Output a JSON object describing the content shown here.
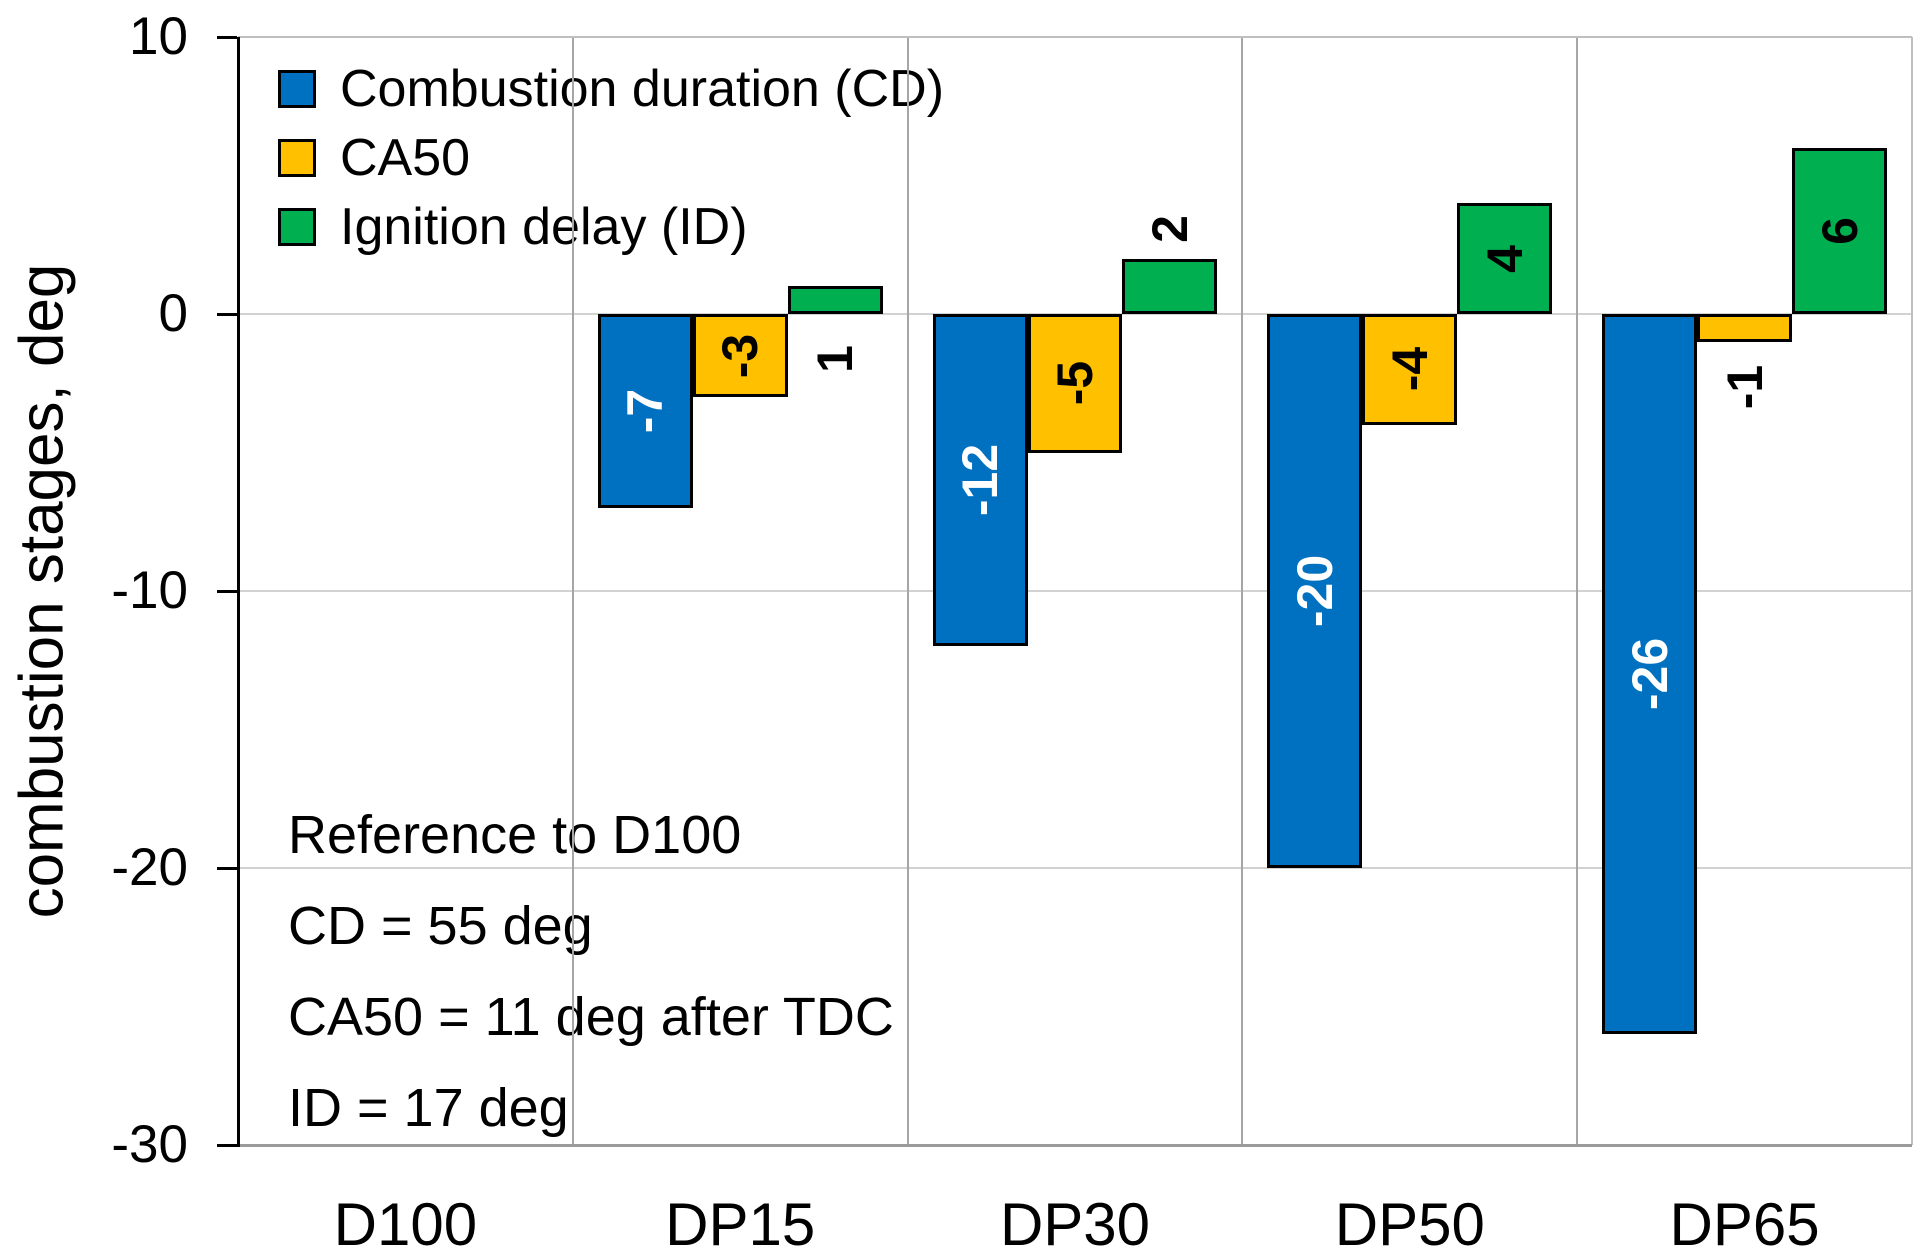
{
  "chart_data": {
    "type": "bar",
    "title": "",
    "categories": [
      "D100",
      "DP15",
      "DP30",
      "DP50",
      "DP65"
    ],
    "series": [
      {
        "name": "Combustion duration (CD)",
        "color": "#0070C0",
        "label_color": "#FFFFFF",
        "values": [
          null,
          -7,
          -12,
          -20,
          -26
        ],
        "label_pos": [
          null,
          "center",
          "center",
          "center",
          "center"
        ]
      },
      {
        "name": "CA50",
        "color": "#FFC000",
        "label_color": "#000000",
        "values": [
          null,
          -3,
          -5,
          -4,
          -1
        ],
        "label_pos": [
          null,
          "center",
          "center",
          "center",
          "below"
        ]
      },
      {
        "name": "Ignition delay (ID)",
        "color": "#00B050",
        "label_color": "#000000",
        "values": [
          null,
          1,
          2,
          4,
          6
        ],
        "label_pos": [
          null,
          "below",
          "above",
          "center",
          "center"
        ]
      }
    ],
    "xlabel": "",
    "ylabel": "combustion stages, deg",
    "ylim": [
      -30,
      10
    ],
    "yticks": [
      10,
      0,
      -10,
      -20,
      -30
    ],
    "grid": true,
    "legend_position": "top-left-inside",
    "annotation_lines": [
      "Reference to D100",
      "CD = 55 deg",
      "CA50 = 11 deg after TDC",
      "ID = 17 deg"
    ]
  }
}
